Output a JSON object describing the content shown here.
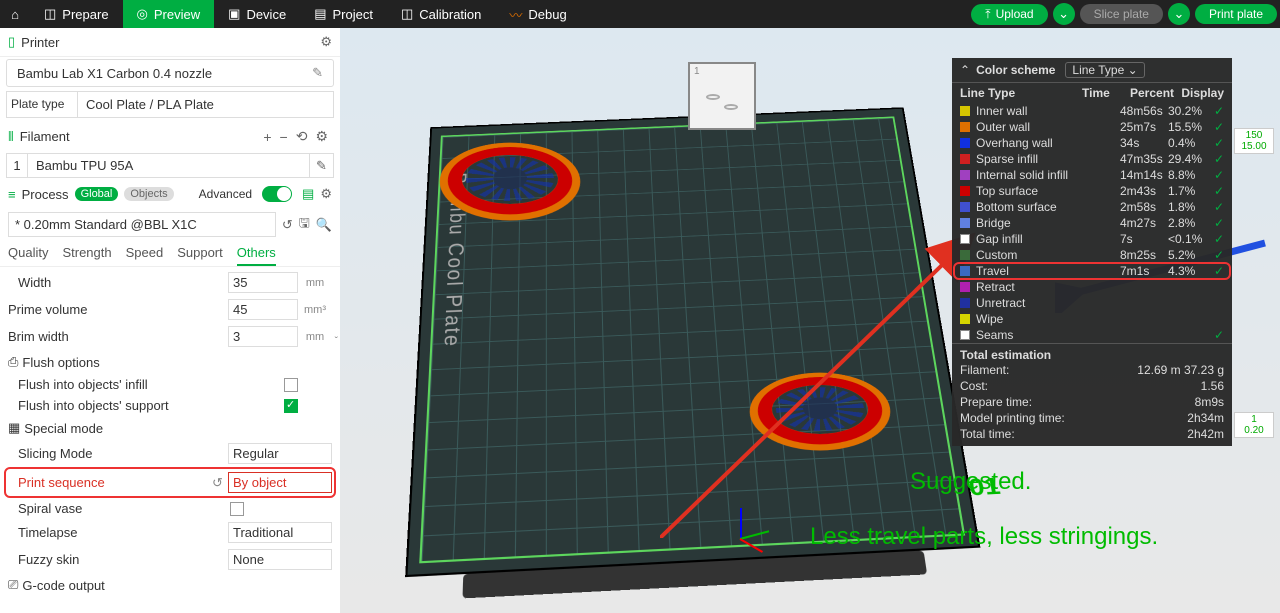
{
  "topbar": {
    "tabs": [
      "Prepare",
      "Preview",
      "Device",
      "Project",
      "Calibration",
      "Debug"
    ],
    "active": 1,
    "upload": "Upload",
    "slice": "Slice plate",
    "print": "Print plate"
  },
  "printer": {
    "section": "Printer",
    "name": "Bambu Lab X1 Carbon 0.4 nozzle",
    "plateType_lbl": "Plate type",
    "plateType_val": "Cool Plate / PLA Plate"
  },
  "filament": {
    "section": "Filament",
    "items": [
      {
        "n": "1",
        "name": "Bambu TPU 95A"
      }
    ]
  },
  "process": {
    "section": "Process",
    "scope1": "Global",
    "scope2": "Objects",
    "advanced": "Advanced",
    "preset": "* 0.20mm Standard @BBL X1C",
    "tabs": [
      "Quality",
      "Strength",
      "Speed",
      "Support",
      "Others"
    ],
    "activeTab": 4,
    "params": {
      "width": {
        "lbl": "Width",
        "val": "35",
        "unit": "mm"
      },
      "prime": {
        "lbl": "Prime volume",
        "val": "45",
        "unit": "mm³"
      },
      "brim": {
        "lbl": "Brim width",
        "val": "3",
        "unit": "mm"
      }
    },
    "flush": {
      "header": "Flush options",
      "infill": "Flush into objects' infill",
      "support": "Flush into objects' support"
    },
    "special": {
      "header": "Special mode",
      "slicing": {
        "lbl": "Slicing Mode",
        "val": "Regular"
      },
      "seq": {
        "lbl": "Print sequence",
        "val": "By object"
      },
      "spiral": {
        "lbl": "Spiral vase"
      },
      "timelapse": {
        "lbl": "Timelapse",
        "val": "Traditional"
      },
      "fuzzy": {
        "lbl": "Fuzzy skin",
        "val": "None"
      }
    },
    "gcode": "G-code output"
  },
  "overlay": {
    "t1": "Suggested.",
    "t2": "Less travel parts, less stringings."
  },
  "plate": {
    "label": "Bambu Cool Plate",
    "num": "01"
  },
  "legend": {
    "title": "Color scheme",
    "mode": "Line Type",
    "cols": {
      "lt": "Line Type",
      "tm": "Time",
      "pc": "Percent",
      "dp": "Display"
    },
    "rows": [
      {
        "c": "#d4c400",
        "n": "Inner wall",
        "t": "48m56s",
        "p": "30.2%",
        "on": true
      },
      {
        "c": "#e07000",
        "n": "Outer wall",
        "t": "25m7s",
        "p": "15.5%",
        "on": true
      },
      {
        "c": "#1030e0",
        "n": "Overhang wall",
        "t": "34s",
        "p": "0.4%",
        "on": true
      },
      {
        "c": "#d02020",
        "n": "Sparse infill",
        "t": "47m35s",
        "p": "29.4%",
        "on": true
      },
      {
        "c": "#a040c0",
        "n": "Internal solid infill",
        "t": "14m14s",
        "p": "8.8%",
        "on": true
      },
      {
        "c": "#cc0000",
        "n": "Top surface",
        "t": "2m43s",
        "p": "1.7%",
        "on": true
      },
      {
        "c": "#4050d0",
        "n": "Bottom surface",
        "t": "2m58s",
        "p": "1.8%",
        "on": true
      },
      {
        "c": "#6080e0",
        "n": "Bridge",
        "t": "4m27s",
        "p": "2.8%",
        "on": true
      },
      {
        "c": "#ffffff",
        "n": "Gap infill",
        "t": "7s",
        "p": "<0.1%",
        "on": true
      },
      {
        "c": "#3a6a3a",
        "n": "Custom",
        "t": "8m25s",
        "p": "5.2%",
        "on": true
      },
      {
        "c": "#3a6ac0",
        "n": "Travel",
        "t": "7m1s",
        "p": "4.3%",
        "on": true,
        "hl": true
      },
      {
        "c": "#b020b0",
        "n": "Retract",
        "t": "",
        "p": "",
        "on": false
      },
      {
        "c": "#2030a0",
        "n": "Unretract",
        "t": "",
        "p": "",
        "on": false
      },
      {
        "c": "#d4d400",
        "n": "Wipe",
        "t": "",
        "p": "",
        "on": false
      },
      {
        "c": "#ffffff",
        "n": "Seams",
        "t": "",
        "p": "",
        "on": true
      }
    ],
    "total": {
      "header": "Total estimation",
      "rows": [
        {
          "k": "Filament:",
          "v": "12.69 m   37.23 g"
        },
        {
          "k": "Cost:",
          "v": "1.56"
        },
        {
          "k": "Prepare time:",
          "v": "8m9s"
        },
        {
          "k": "Model printing time:",
          "v": "2h34m"
        },
        {
          "k": "Total time:",
          "v": "2h42m"
        }
      ]
    }
  },
  "corner": {
    "top": {
      "a": "150",
      "b": "15.00"
    },
    "bot": {
      "a": "1",
      "b": "0.20"
    }
  }
}
